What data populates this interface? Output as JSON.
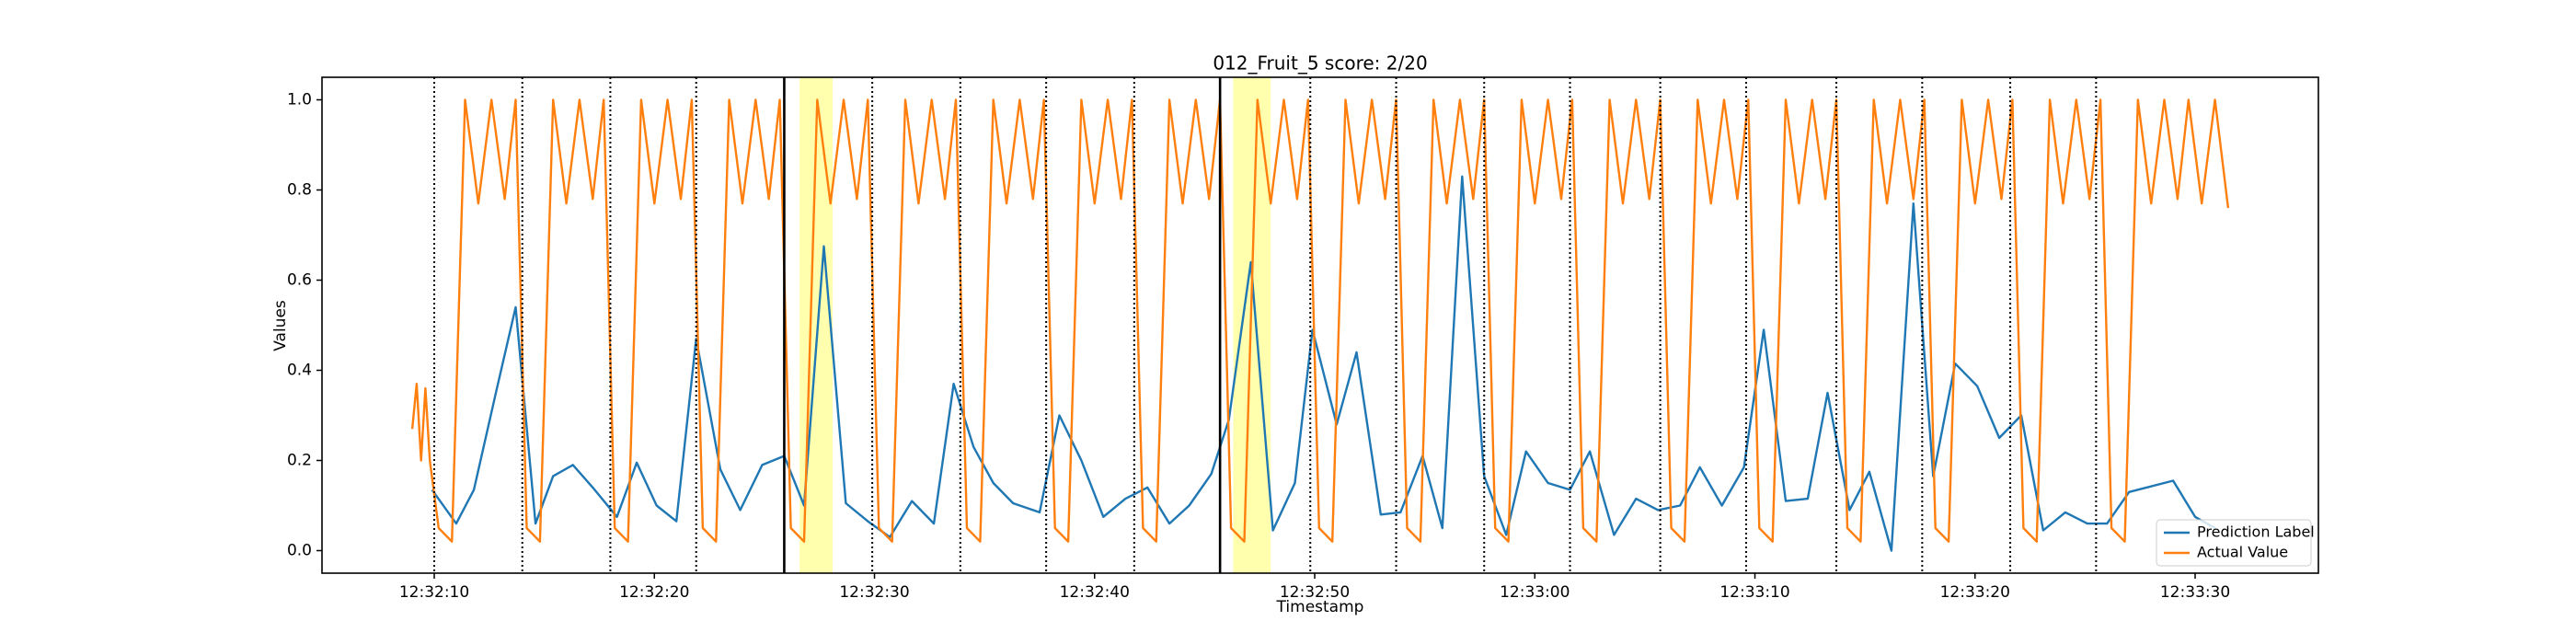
{
  "chart_data": {
    "type": "line",
    "title": "012_Fruit_5 score: 2/20",
    "xlabel": "Timestamp",
    "ylabel": "Values",
    "xlim": [
      "12:32:04.9",
      "12:33:35.6"
    ],
    "xticks": [
      "12:32:10",
      "12:32:20",
      "12:32:30",
      "12:32:40",
      "12:32:50",
      "12:33:00",
      "12:33:10",
      "12:33:20",
      "12:33:30"
    ],
    "ylim": [
      -0.05,
      1.05
    ],
    "yticks": [
      {
        "value": 0,
        "label": "0.0"
      },
      {
        "value": 0.2,
        "label": "0.2"
      },
      {
        "value": 0.4,
        "label": "0.4"
      },
      {
        "value": 0.6,
        "label": "0.6"
      },
      {
        "value": 0.8,
        "label": "0.8"
      },
      {
        "value": 1,
        "label": "1.0"
      }
    ],
    "legend": "lower right",
    "event_color": "#000000",
    "span_color": "#ffff99",
    "events": [
      {
        "x": "12:32:10.0",
        "hit": false
      },
      {
        "x": "12:32:14.0",
        "hit": false
      },
      {
        "x": "12:32:18.0",
        "hit": false
      },
      {
        "x": "12:32:21.9",
        "hit": false
      },
      {
        "x": "12:32:25.9",
        "hit": true
      },
      {
        "x": "12:32:29.9",
        "hit": false
      },
      {
        "x": "12:32:33.9",
        "hit": false
      },
      {
        "x": "12:32:37.8",
        "hit": false
      },
      {
        "x": "12:32:41.8",
        "hit": false
      },
      {
        "x": "12:32:45.7",
        "hit": true
      },
      {
        "x": "12:32:49.8",
        "hit": false
      },
      {
        "x": "12:32:53.7",
        "hit": false
      },
      {
        "x": "12:32:57.7",
        "hit": false
      },
      {
        "x": "12:33:01.6",
        "hit": false
      },
      {
        "x": "12:33:05.7",
        "hit": false
      },
      {
        "x": "12:33:09.6",
        "hit": false
      },
      {
        "x": "12:33:13.7",
        "hit": false
      },
      {
        "x": "12:33:17.6",
        "hit": false
      },
      {
        "x": "12:33:21.6",
        "hit": false
      },
      {
        "x": "12:33:25.5",
        "hit": false
      }
    ],
    "spans": [
      {
        "start": "12:32:26.6",
        "end": "12:32:28.1"
      },
      {
        "start": "12:32:46.3",
        "end": "12:32:48.0"
      }
    ],
    "series": [
      {
        "name": "Prediction Label",
        "color": "#1f77b4",
        "x": [
          "12:32:09.9",
          "12:32:11.0",
          "12:32:11.8",
          "12:32:12.8",
          "12:32:13.7",
          "12:32:14.6",
          "12:32:15.4",
          "12:32:16.3",
          "12:32:17.2",
          "12:32:18.3",
          "12:32:19.2",
          "12:32:20.1",
          "12:32:21.0",
          "12:32:21.9",
          "12:32:23.0",
          "12:32:23.9",
          "12:32:24.9",
          "12:32:25.9",
          "12:32:26.8",
          "12:32:27.7",
          "12:32:28.7",
          "12:32:29.7",
          "12:32:30.7",
          "12:32:31.7",
          "12:32:32.7",
          "12:32:33.6",
          "12:32:34.5",
          "12:32:35.4",
          "12:32:36.3",
          "12:32:37.5",
          "12:32:38.4",
          "12:32:39.4",
          "12:32:40.4",
          "12:32:41.4",
          "12:32:42.4",
          "12:32:43.4",
          "12:32:44.3",
          "12:32:45.3",
          "12:32:46.1",
          "12:32:47.1",
          "12:32:48.1",
          "12:32:49.1",
          "12:32:49.9",
          "12:32:51.0",
          "12:32:51.9",
          "12:32:53.0",
          "12:32:53.9",
          "12:32:54.9",
          "12:32:55.8",
          "12:32:56.7",
          "12:32:57.7",
          "12:32:58.7",
          "12:32:59.6",
          "12:33:00.6",
          "12:33:01.6",
          "12:33:02.5",
          "12:33:03.6",
          "12:33:04.6",
          "12:33:05.6",
          "12:33:06.6",
          "12:33:07.5",
          "12:33:08.5",
          "12:33:09.5",
          "12:33:10.4",
          "12:33:11.4",
          "12:33:12.4",
          "12:33:13.3",
          "12:33:14.3",
          "12:33:15.2",
          "12:33:16.2",
          "12:33:17.2",
          "12:33:18.1",
          "12:33:19.1",
          "12:33:20.1",
          "12:33:21.1",
          "12:33:22.1",
          "12:33:23.1",
          "12:33:24.1",
          "12:33:25.1",
          "12:33:26.0",
          "12:33:27.0",
          "12:33:29.0",
          "12:33:30.0",
          "12:33:30.9"
        ],
        "values": [
          0.135,
          0.06,
          0.135,
          0.35,
          0.54,
          0.06,
          0.165,
          0.19,
          0.14,
          0.075,
          0.195,
          0.1,
          0.065,
          0.47,
          0.18,
          0.09,
          0.19,
          0.21,
          0.1,
          0.675,
          0.105,
          0.065,
          0.03,
          0.11,
          0.06,
          0.37,
          0.23,
          0.15,
          0.105,
          0.085,
          0.3,
          0.2,
          0.075,
          0.115,
          0.14,
          0.06,
          0.1,
          0.17,
          0.29,
          0.64,
          0.045,
          0.15,
          0.49,
          0.28,
          0.44,
          0.08,
          0.085,
          0.21,
          0.05,
          0.83,
          0.165,
          0.035,
          0.22,
          0.15,
          0.135,
          0.22,
          0.035,
          0.115,
          0.09,
          0.1,
          0.185,
          0.1,
          0.185,
          0.49,
          0.11,
          0.115,
          0.35,
          0.09,
          0.175,
          0,
          0.77,
          0.165,
          0.415,
          0.365,
          0.25,
          0.3,
          0.045,
          0.085,
          0.06,
          0.06,
          0.13,
          0.155,
          0.075,
          0.05
        ]
      },
      {
        "name": "Actual Value",
        "color": "#ff7f0e",
        "x": [
          "12:32:09.0",
          "12:32:09.2",
          "12:32:09.4",
          "12:32:09.6",
          "12:32:09.8",
          "12:32:10.2",
          "12:32:10.8",
          "12:32:11.4",
          "12:32:12.0",
          "12:32:12.6",
          "12:32:13.2",
          "12:32:13.7",
          "12:32:14.2",
          "12:32:14.8",
          "12:32:15.4",
          "12:32:16.0",
          "12:32:16.6",
          "12:32:17.2",
          "12:32:17.7",
          "12:32:18.2",
          "12:32:18.8",
          "12:32:19.4",
          "12:32:20.0",
          "12:32:20.6",
          "12:32:21.2",
          "12:32:21.7",
          "12:32:22.2",
          "12:32:22.8",
          "12:32:23.4",
          "12:32:24.0",
          "12:32:24.6",
          "12:32:25.2",
          "12:32:25.7",
          "12:32:26.2",
          "12:32:26.8",
          "12:32:27.4",
          "12:32:28.0",
          "12:32:28.6",
          "12:32:29.2",
          "12:32:29.7",
          "12:32:30.2",
          "12:32:30.8",
          "12:32:31.4",
          "12:32:32.0",
          "12:32:32.6",
          "12:32:33.2",
          "12:32:33.7",
          "12:32:34.2",
          "12:32:34.8",
          "12:32:35.4",
          "12:32:36.0",
          "12:32:36.6",
          "12:32:37.2",
          "12:32:37.7",
          "12:32:38.2",
          "12:32:38.8",
          "12:32:39.4",
          "12:32:40.0",
          "12:32:40.6",
          "12:32:41.2",
          "12:32:41.7",
          "12:32:42.2",
          "12:32:42.8",
          "12:32:43.4",
          "12:32:44.0",
          "12:32:44.6",
          "12:32:45.2",
          "12:32:45.7",
          "12:32:46.2",
          "12:32:46.8",
          "12:32:47.4",
          "12:32:48.0",
          "12:32:48.6",
          "12:32:49.2",
          "12:32:49.7",
          "12:32:50.2",
          "12:32:50.8",
          "12:32:51.4",
          "12:32:52.0",
          "12:32:52.6",
          "12:32:53.2",
          "12:32:53.7",
          "12:32:54.2",
          "12:32:54.8",
          "12:32:55.4",
          "12:32:56.0",
          "12:32:56.6",
          "12:32:57.2",
          "12:32:57.7",
          "12:32:58.2",
          "12:32:58.8",
          "12:32:59.4",
          "12:33:00.0",
          "12:33:00.6",
          "12:33:01.2",
          "12:33:01.7",
          "12:33:02.2",
          "12:33:02.8",
          "12:33:03.4",
          "12:33:04.0",
          "12:33:04.6",
          "12:33:05.2",
          "12:33:05.7",
          "12:33:06.2",
          "12:33:06.8",
          "12:33:07.4",
          "12:33:08.0",
          "12:33:08.6",
          "12:33:09.2",
          "12:33:09.7",
          "12:33:10.2",
          "12:33:10.8",
          "12:33:11.4",
          "12:33:12.0",
          "12:33:12.6",
          "12:33:13.2",
          "12:33:13.7",
          "12:33:14.2",
          "12:33:14.8",
          "12:33:15.4",
          "12:33:16.0",
          "12:33:16.6",
          "12:33:17.2",
          "12:33:17.7",
          "12:33:18.2",
          "12:33:18.8",
          "12:33:19.4",
          "12:33:20.0",
          "12:33:20.6",
          "12:33:21.2",
          "12:33:21.7",
          "12:33:22.2",
          "12:33:22.8",
          "12:33:23.4",
          "12:33:24.0",
          "12:33:24.6",
          "12:33:25.2",
          "12:33:25.7",
          "12:33:26.2",
          "12:33:26.8",
          "12:33:27.4",
          "12:33:28.0",
          "12:33:28.6",
          "12:33:29.2",
          "12:33:29.7",
          "12:33:30.3",
          "12:33:30.9",
          "12:33:31.5"
        ],
        "values": [
          0.27,
          0.37,
          0.2,
          0.36,
          0.2,
          0.05,
          0.02,
          1,
          0.77,
          1,
          0.78,
          1,
          0.05,
          0.02,
          1,
          0.77,
          1,
          0.78,
          1,
          0.05,
          0.02,
          1,
          0.77,
          1,
          0.78,
          1,
          0.05,
          0.02,
          1,
          0.77,
          1,
          0.78,
          1,
          0.05,
          0.02,
          1,
          0.77,
          1,
          0.78,
          1,
          0.05,
          0.02,
          1,
          0.77,
          1,
          0.78,
          1,
          0.05,
          0.02,
          1,
          0.77,
          1,
          0.78,
          1,
          0.05,
          0.02,
          1,
          0.77,
          1,
          0.78,
          1,
          0.05,
          0.02,
          1,
          0.77,
          1,
          0.78,
          1,
          0.05,
          0.02,
          1,
          0.77,
          1,
          0.78,
          1,
          0.05,
          0.02,
          1,
          0.77,
          1,
          0.78,
          1,
          0.05,
          0.02,
          1,
          0.77,
          1,
          0.78,
          1,
          0.05,
          0.02,
          1,
          0.77,
          1,
          0.78,
          1,
          0.05,
          0.02,
          1,
          0.77,
          1,
          0.78,
          1,
          0.05,
          0.02,
          1,
          0.77,
          1,
          0.78,
          1,
          0.05,
          0.02,
          1,
          0.77,
          1,
          0.78,
          1,
          0.05,
          0.02,
          1,
          0.77,
          1,
          0.78,
          1,
          0.05,
          0.02,
          1,
          0.77,
          1,
          0.78,
          1,
          0.05,
          0.02,
          1,
          0.77,
          1,
          0.78,
          1,
          0.05,
          0.02,
          1,
          0.77,
          1,
          0.78,
          1,
          0.77,
          1,
          0.76
        ]
      }
    ]
  }
}
